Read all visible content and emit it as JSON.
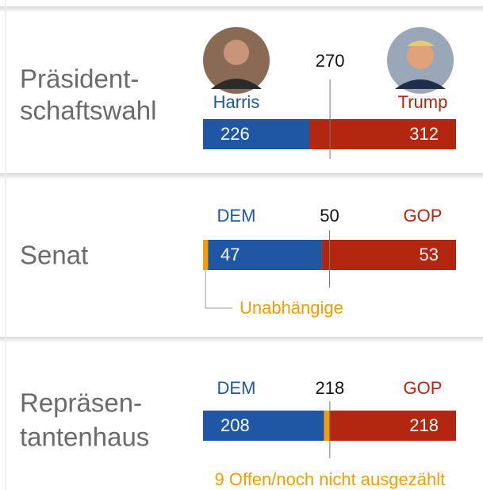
{
  "chart_data": [
    {
      "type": "stacked-bar",
      "title": [
        "Präsident-",
        "schaftswahl"
      ],
      "threshold": 270,
      "xlim": [
        0,
        538
      ],
      "series": [
        {
          "name": "Harris",
          "color": "#1f57a5",
          "values": [
            226
          ]
        },
        {
          "name": "Trump",
          "color": "#b3260f",
          "values": [
            312
          ]
        }
      ]
    },
    {
      "type": "stacked-bar",
      "title": [
        "Senat"
      ],
      "threshold": 50,
      "xlim": [
        0,
        100
      ],
      "series": [
        {
          "name": "DEM",
          "color": "#1f57a5",
          "values": [
            47
          ]
        },
        {
          "name": "GOP",
          "color": "#b3260f",
          "values": [
            53
          ]
        }
      ],
      "highlight": {
        "name": "Unabhängige",
        "color": "#f59c00",
        "value": 2
      }
    },
    {
      "type": "stacked-bar",
      "title": [
        "Repräsen-",
        "tantenhaus"
      ],
      "threshold": 218,
      "xlim": [
        0,
        435
      ],
      "series": [
        {
          "name": "DEM",
          "color": "#1f57a5",
          "values": [
            208
          ]
        },
        {
          "name": "9 Offen/noch nicht ausgezählt",
          "color": "#f59c00",
          "values": [
            9
          ]
        },
        {
          "name": "GOP",
          "color": "#b3260f",
          "values": [
            218
          ]
        }
      ]
    }
  ]
}
